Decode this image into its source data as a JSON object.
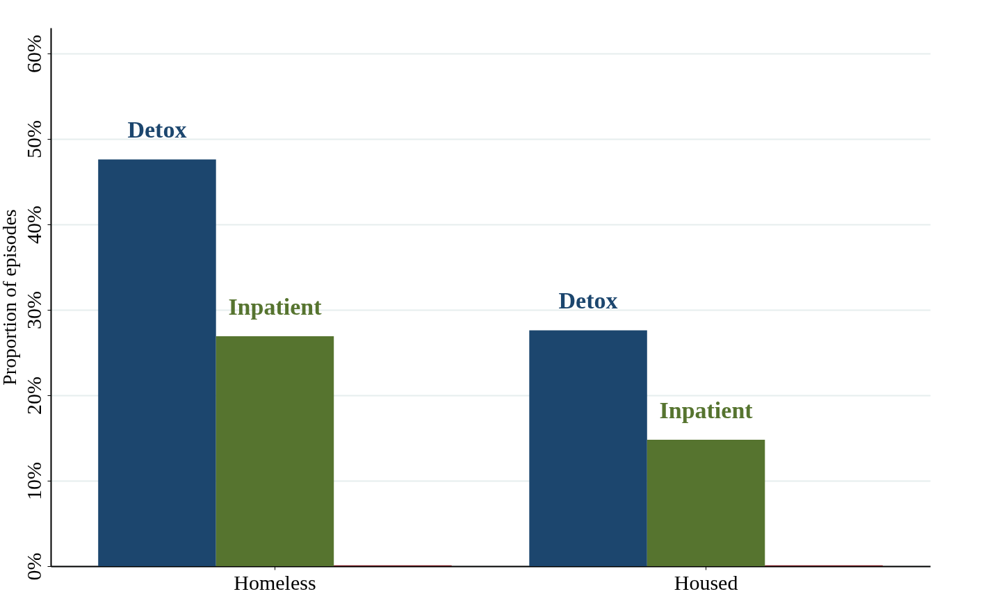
{
  "chart_data": {
    "type": "bar",
    "ylabel": "Proportion of episodes",
    "categories": [
      "Homeless",
      "Housed"
    ],
    "series": [
      {
        "name": "Detox",
        "color": "#1c466e",
        "values": [
          47.6,
          27.6
        ]
      },
      {
        "name": "Inpatient",
        "color": "#56742f",
        "values": [
          26.9,
          14.8
        ]
      },
      {
        "color": "#7a1e22",
        "values": [
          0.1,
          0.1
        ]
      }
    ],
    "ylim": [
      0,
      63
    ],
    "yticks": [
      {
        "value": 0,
        "label": "0%"
      },
      {
        "value": 10,
        "label": "10%"
      },
      {
        "value": 20,
        "label": "20%"
      },
      {
        "value": 30,
        "label": "30%"
      },
      {
        "value": 40,
        "label": "40%"
      },
      {
        "value": 50,
        "label": "50%"
      },
      {
        "value": 60,
        "label": "60%"
      }
    ],
    "grid": "y",
    "legend": false
  }
}
